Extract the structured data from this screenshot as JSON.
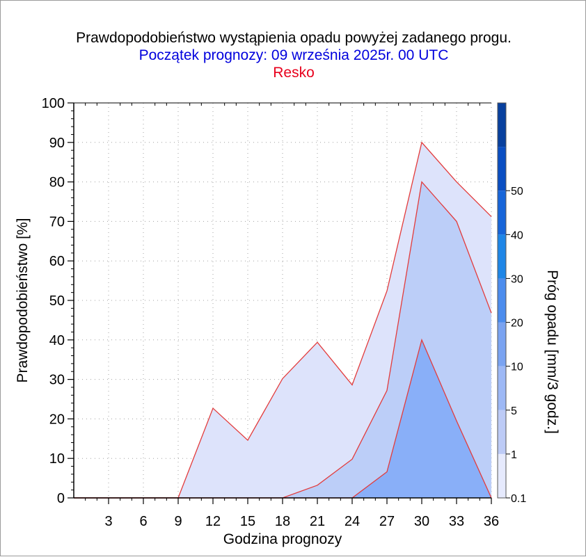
{
  "title_lines": {
    "line1": "Prawdopodobieństwo wystąpienia opadu powyżej zadanego progu.",
    "line2": "Początek prognozy: 09 września 2025r. 00 UTC",
    "line3": "Resko"
  },
  "colors": {
    "title": "#000000",
    "subtitle": "#0000dd",
    "station": "#e8001c",
    "series_line": "#e33b3b",
    "fill_0_1": "#dde3fb",
    "fill_1": "#bccef8",
    "fill_5": "#89aff8",
    "grid": "#a0a0a0"
  },
  "chart_data": {
    "type": "area",
    "xlabel": "Godzina prognozy",
    "ylabel": "Prawdopodobieństwo [%]",
    "x": [
      0,
      3,
      6,
      9,
      12,
      15,
      18,
      21,
      24,
      27,
      30,
      33,
      36
    ],
    "x_ticks": [
      3,
      6,
      9,
      12,
      15,
      18,
      21,
      24,
      27,
      30,
      33,
      36
    ],
    "xlim": [
      0,
      36
    ],
    "ylim": [
      0,
      100
    ],
    "y_ticks": [
      0,
      10,
      20,
      30,
      40,
      50,
      60,
      70,
      80,
      90,
      100
    ],
    "grid": true,
    "series": [
      {
        "threshold": "0.1",
        "values": [
          0,
          0,
          0,
          0,
          22.7,
          14.6,
          30.2,
          39.4,
          28.6,
          52.4,
          90,
          80,
          71.2
        ]
      },
      {
        "threshold": "1",
        "values": [
          0,
          0,
          0,
          0,
          0,
          0,
          0,
          3.2,
          9.8,
          27.2,
          80,
          70,
          46.8
        ]
      },
      {
        "threshold": "5",
        "values": [
          0,
          0,
          0,
          0,
          0,
          0,
          0,
          0,
          0,
          6.6,
          40,
          19.5,
          0
        ]
      }
    ],
    "colorbar": {
      "label": "Próg opadu [mm/3 godz.]",
      "levels": [
        "0.1",
        "1",
        "5",
        "10",
        "20",
        "30",
        "40",
        "50"
      ],
      "colors": [
        "#e6eafd",
        "#bdcbf6",
        "#9db8f5",
        "#7aa3f1",
        "#4c8ced",
        "#1e86e7",
        "#1765d9",
        "#0a4ec2",
        "#08409e"
      ]
    }
  }
}
